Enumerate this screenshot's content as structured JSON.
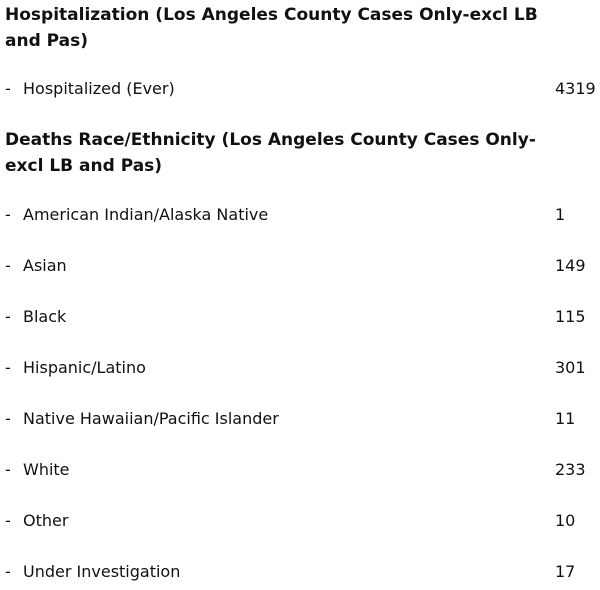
{
  "hospitalization": {
    "title": "Hospitalization (Los Angeles County Cases Only-excl LB and Pas)",
    "rows": [
      {
        "dash": "-",
        "label": "Hospitalized (Ever)",
        "value": "4319"
      }
    ]
  },
  "deaths": {
    "title": "Deaths Race/Ethnicity (Los Angeles County Cases Only-excl LB and Pas)",
    "rows": [
      {
        "dash": "-",
        "label": "American Indian/Alaska Native",
        "value": "1"
      },
      {
        "dash": "-",
        "label": "Asian",
        "value": "149"
      },
      {
        "dash": "-",
        "label": "Black",
        "value": "115"
      },
      {
        "dash": "-",
        "label": "Hispanic/Latino",
        "value": "301"
      },
      {
        "dash": "-",
        "label": "Native Hawaiian/Pacific Islander",
        "value": "11"
      },
      {
        "dash": "-",
        "label": "White",
        "value": "233"
      },
      {
        "dash": "-",
        "label": "Other",
        "value": "10"
      },
      {
        "dash": "-",
        "label": "Under Investigation",
        "value": "17"
      }
    ]
  }
}
